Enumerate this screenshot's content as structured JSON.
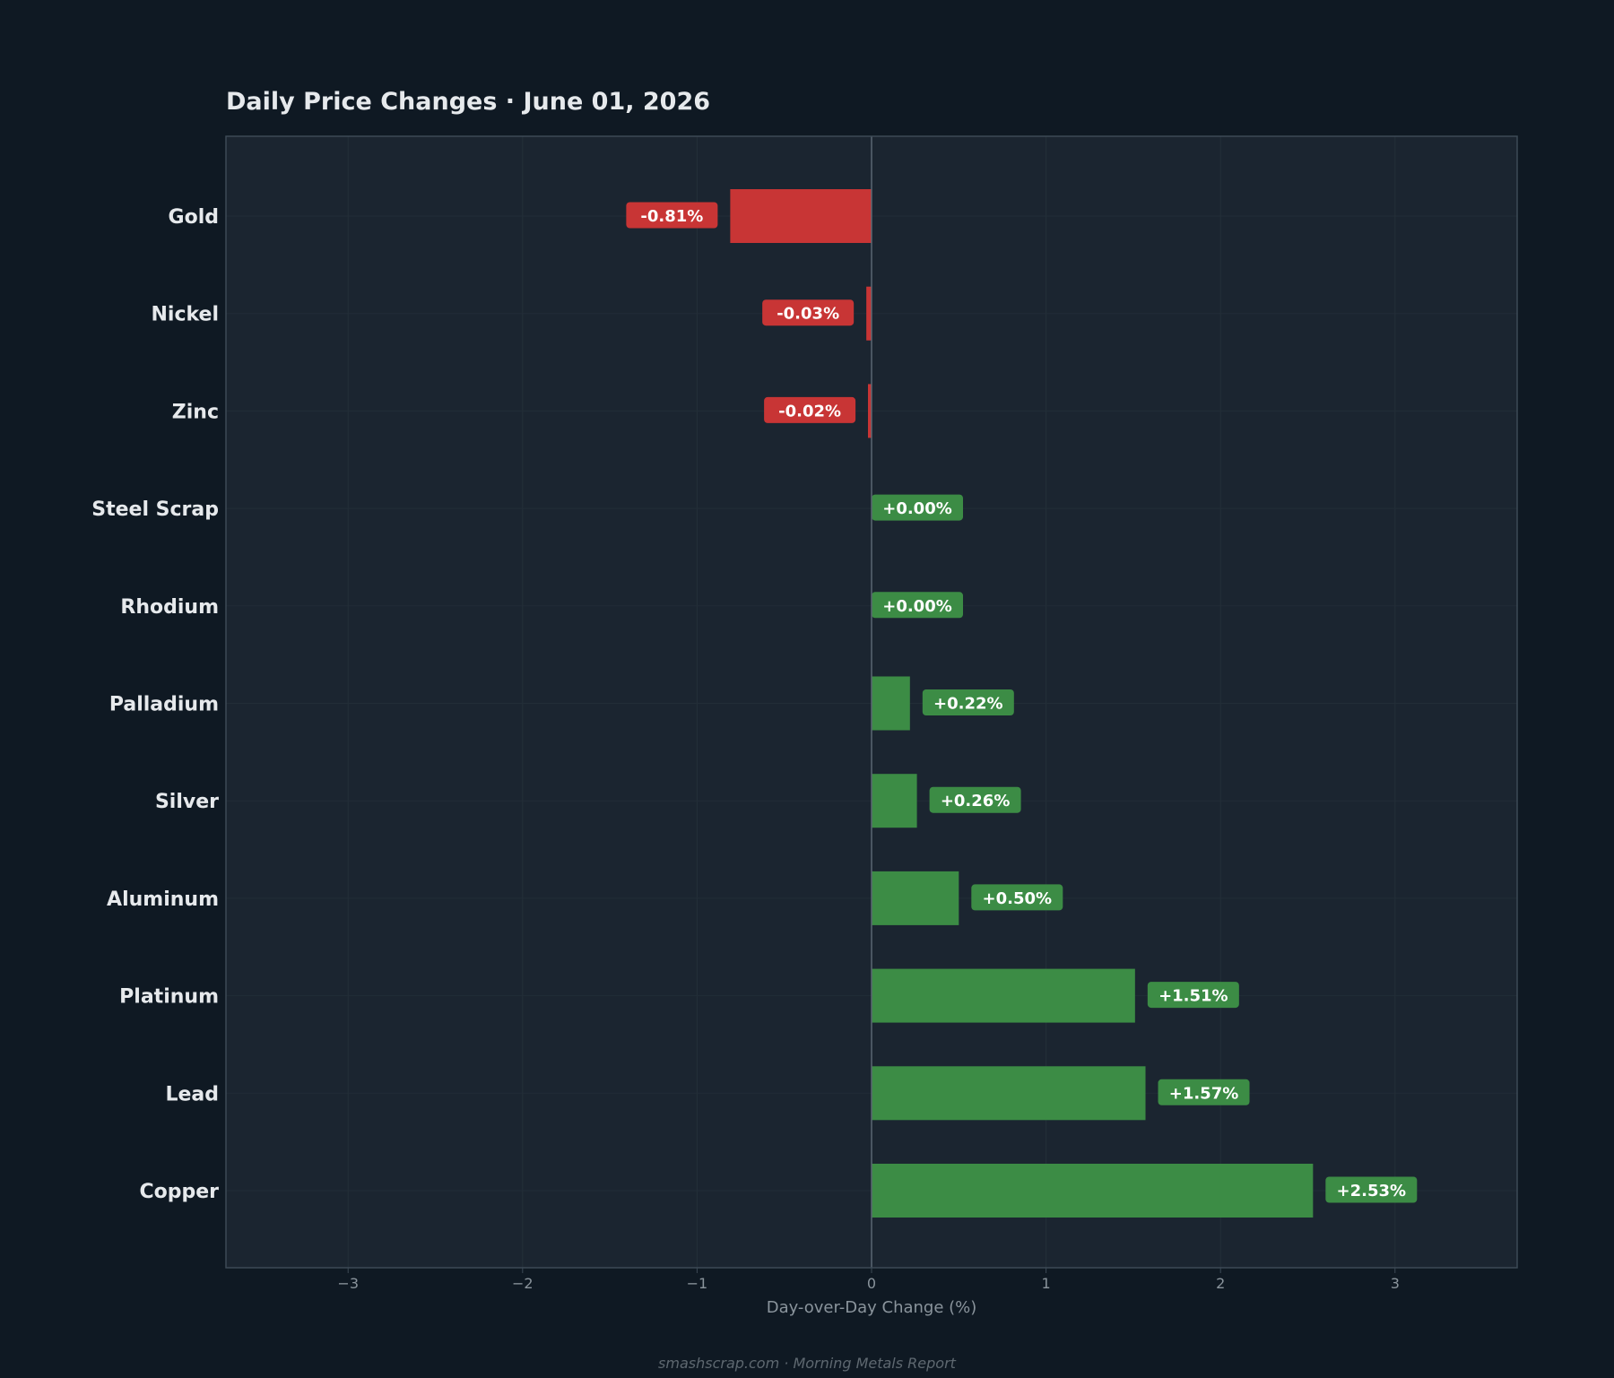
{
  "chart_data": {
    "type": "bar",
    "orientation": "horizontal",
    "title": "Daily Price Changes  ·  June 01, 2026",
    "xlabel": "Day-over-Day Change (%)",
    "ylabel": "",
    "xlim": [
      -3.7,
      3.7
    ],
    "x_ticks": [
      -3,
      -2,
      -1,
      0,
      1,
      2,
      3
    ],
    "x_tick_labels": [
      "−3",
      "−2",
      "−1",
      "0",
      "1",
      "2",
      "3"
    ],
    "grid": true,
    "categories": [
      "Gold",
      "Nickel",
      "Zinc",
      "Steel Scrap",
      "Rhodium",
      "Palladium",
      "Silver",
      "Aluminum",
      "Platinum",
      "Lead",
      "Copper"
    ],
    "values": [
      -0.81,
      -0.03,
      -0.02,
      0.0,
      0.0,
      0.22,
      0.26,
      0.5,
      1.51,
      1.57,
      2.53
    ],
    "data_labels": [
      "-0.81%",
      "-0.03%",
      "-0.02%",
      "+0.00%",
      "+0.00%",
      "+0.22%",
      "+0.26%",
      "+0.50%",
      "+1.51%",
      "+1.57%",
      "+2.53%"
    ],
    "colors": {
      "negative": "#c83535",
      "positive": "#3c8c45",
      "plot_background": "#1b2530",
      "page_background": "#0f1923",
      "frame": "#3d4a56",
      "zero_line": "#5a6672"
    }
  },
  "footer": "smashscrap.com  ·  Morning Metals Report"
}
